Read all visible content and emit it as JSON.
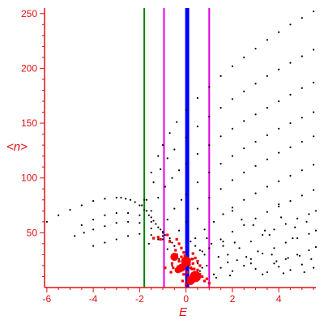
{
  "chart_data": {
    "type": "scatter",
    "title": "",
    "xlabel": "E",
    "ylabel": "<n>",
    "xlim": [
      -6.1,
      5.6
    ],
    "ylim": [
      0,
      255
    ],
    "x_ticks": [
      -6,
      -4,
      -2,
      0,
      2,
      4
    ],
    "y_ticks": [
      50,
      100,
      150,
      200,
      250
    ],
    "grid": false,
    "legend": "none",
    "colors": {
      "axis": "#e01010",
      "tick_text": "#e01010",
      "black_points": "#000000",
      "red_points": "#ff0000",
      "green_line": "#008000",
      "magenta_lines": "#e000e0",
      "blue_line": "#0000ff"
    },
    "vertical_lines": [
      {
        "x": -1.8,
        "color": "#008000",
        "width": 2
      },
      {
        "x": -0.95,
        "color": "#e000e0",
        "width": 2
      },
      {
        "x": 0.05,
        "color": "#0000ff",
        "width": 5
      },
      {
        "x": 1.0,
        "color": "#e000e0",
        "width": 2
      }
    ],
    "series": [
      {
        "color": "#000000",
        "x": [
          -6.0,
          -5.5,
          -5.0,
          -4.5,
          -4.0,
          -3.5,
          -3.0,
          -2.8,
          -2.6,
          -2.4,
          -2.2,
          -2.0,
          -1.8,
          -1.6,
          -1.4,
          -1.2,
          -1.0
        ],
        "y": [
          60,
          66,
          71,
          75,
          79,
          81,
          82,
          82,
          81,
          80,
          78,
          75,
          71,
          66,
          61,
          55,
          50
        ]
      },
      {
        "color": "#000000",
        "x": [
          -4.5,
          -4.0,
          -3.5,
          -3.0,
          -2.5,
          -2.0,
          -1.5,
          -1.0,
          -0.7
        ],
        "y": [
          57,
          62,
          66,
          68,
          68,
          66,
          60,
          51,
          45
        ]
      },
      {
        "color": "#000000",
        "x": [
          -4.8,
          -4.4,
          -4.0,
          -3.5,
          -3.0,
          -2.5,
          -2.0,
          -1.5,
          -1.0,
          -0.6
        ],
        "y": [
          47,
          50,
          53,
          56,
          59,
          60,
          59,
          54,
          47,
          41
        ]
      },
      {
        "color": "#000000",
        "x": [
          -4.0,
          -3.5,
          -3.0,
          -2.5,
          -2.0,
          -1.5,
          -1.0,
          -0.5
        ],
        "y": [
          38,
          41,
          44,
          47,
          49,
          48,
          44,
          38
        ]
      },
      {
        "color": "#000000",
        "x": [
          -1.9,
          -1.7,
          -1.5,
          -1.3,
          -1.1,
          -0.9,
          -0.7,
          -0.5
        ],
        "y": [
          75,
          70,
          64,
          58,
          53,
          48,
          43,
          38
        ]
      },
      {
        "color": "#000000",
        "x": [
          -1.8,
          -1.5,
          -1.2,
          -1.0,
          -0.7,
          -0.4,
          0.0,
          0.5,
          1.0,
          1.5,
          2.0,
          2.5,
          3.0,
          3.5,
          4.0,
          4.5,
          5.0,
          5.5
        ],
        "y": [
          80,
          105,
          120,
          130,
          141,
          151,
          162,
          173,
          183,
          193,
          202,
          210,
          218,
          226,
          233,
          240,
          246,
          252
        ]
      },
      {
        "color": "#000000",
        "x": [
          -1.7,
          -1.4,
          -1.1,
          -0.8,
          -0.5,
          0.0,
          0.5,
          1.0,
          1.5,
          2.0,
          2.5,
          3.0,
          3.5,
          4.0,
          4.5,
          5.0,
          5.5
        ],
        "y": [
          80,
          96,
          108,
          118,
          126,
          137,
          147,
          156,
          164,
          172,
          179,
          186,
          193,
          199,
          205,
          211,
          217
        ]
      },
      {
        "color": "#000000",
        "x": [
          -1.5,
          -1.2,
          -0.9,
          -0.6,
          -0.3,
          0.0,
          0.5,
          1.0,
          1.5,
          2.0,
          2.5,
          3.0,
          3.5,
          4.0,
          4.5,
          5.0,
          5.5
        ],
        "y": [
          70,
          82,
          92,
          100,
          107,
          113,
          122,
          130,
          138,
          145,
          152,
          158,
          164,
          170,
          176,
          182,
          187
        ]
      },
      {
        "color": "#000000",
        "x": [
          -0.8,
          -0.5,
          -0.2,
          0.0,
          0.5,
          1.0,
          1.5,
          2.0,
          2.5,
          3.0,
          3.5,
          4.0,
          4.5,
          5.0,
          5.5
        ],
        "y": [
          62,
          72,
          80,
          85,
          96,
          105,
          113,
          120,
          127,
          133,
          139,
          145,
          150,
          155,
          160
        ]
      },
      {
        "color": "#000000",
        "x": [
          -0.3,
          0.0,
          0.5,
          1.0,
          1.5,
          2.0,
          2.5,
          3.0,
          3.5,
          4.0,
          4.5,
          5.0,
          5.5
        ],
        "y": [
          52,
          60,
          72,
          82,
          90,
          98,
          105,
          111,
          117,
          123,
          128,
          133,
          138
        ]
      },
      {
        "color": "#000000",
        "x": [
          0.4,
          0.8,
          1.2,
          1.6,
          2.0,
          2.5,
          3.0,
          3.5,
          4.0,
          4.5,
          5.0,
          5.5
        ],
        "y": [
          45,
          53,
          60,
          67,
          73,
          80,
          86,
          92,
          97,
          102,
          107,
          112
        ]
      },
      {
        "color": "#000000",
        "x": [
          1.0,
          1.5,
          2.0,
          2.5,
          3.0,
          3.5,
          4.0,
          4.5,
          5.0,
          5.5
        ],
        "y": [
          36,
          44,
          51,
          57,
          63,
          69,
          74,
          79,
          84,
          89
        ]
      },
      {
        "color": "#000000",
        "x": [
          1.8,
          2.3,
          2.8,
          3.3,
          3.8,
          4.3,
          4.8,
          5.3,
          5.6
        ],
        "y": [
          30,
          36,
          42,
          48,
          53,
          58,
          63,
          67,
          70
        ]
      },
      {
        "color": "#000000",
        "x": [
          2.8,
          3.3,
          3.8,
          4.3,
          4.8,
          5.3,
          5.6
        ],
        "y": [
          26,
          31,
          36,
          41,
          45,
          49,
          52
        ]
      },
      {
        "color": "#000000",
        "x": [
          3.8,
          4.3,
          4.8,
          5.3,
          5.6
        ],
        "y": [
          22,
          26,
          30,
          34,
          37
        ]
      },
      {
        "color": "#000000",
        "x": [
          1.5,
          2.0,
          2.5,
          3.0,
          3.5,
          4.0,
          4.5,
          5.0,
          5.5,
          2.2,
          2.8,
          3.3,
          3.9,
          4.4,
          5.1,
          1.8,
          2.6,
          3.1,
          3.7,
          4.2,
          4.9,
          5.4,
          2.1,
          3.4,
          4.6,
          1.6,
          2.4,
          2.9,
          3.6,
          4.1,
          4.7,
          5.2,
          0.9,
          1.2,
          1.4,
          0.7,
          1.1,
          0.6,
          1.3,
          1.9
        ],
        "y": [
          18,
          15,
          20,
          17,
          14,
          19,
          16,
          21,
          18,
          25,
          22,
          12,
          24,
          27,
          14,
          23,
          28,
          33,
          30,
          13,
          29,
          26,
          41,
          52,
          45,
          38,
          62,
          57,
          48,
          64,
          55,
          60,
          20,
          12,
          28,
          33,
          40,
          15,
          9,
          11
        ]
      },
      {
        "color": "#000000",
        "x": [
          0.2,
          0.4,
          0.6,
          0.8,
          0.3,
          0.5,
          0.7,
          -0.3,
          -0.5,
          -0.6,
          0.9,
          1.6,
          2.0,
          4.0,
          -1.2,
          -1.6,
          -0.8
        ],
        "y": [
          42,
          38,
          34,
          30,
          26,
          22,
          18,
          26,
          31,
          20,
          45,
          42,
          70,
          76,
          44,
          40,
          35
        ]
      }
    ],
    "red_points": {
      "color": "#ff0000",
      "x": [
        -0.5,
        -0.6,
        -0.4,
        -0.3,
        -0.2,
        -0.1,
        0.0,
        0.1,
        0.2,
        0.3,
        0.4,
        0.5,
        0.6,
        -0.45,
        -0.35,
        -0.25,
        -0.15,
        -0.05,
        0.05,
        0.15,
        0.25,
        0.35,
        0.45,
        0.55,
        -0.55,
        -0.3,
        -0.2,
        -0.1,
        0.1,
        0.2,
        0.3,
        0.4,
        -0.4,
        0.5,
        -0.7,
        -0.8,
        -1.1,
        -1.2,
        -0.9,
        0.7,
        0.8,
        0.9,
        1.0,
        -1.4,
        -0.65,
        0.6,
        0.0,
        -0.15,
        0.25,
        0.35
      ],
      "y": [
        26,
        22,
        30,
        24,
        28,
        32,
        20,
        25,
        18,
        22,
        27,
        16,
        12,
        34,
        19,
        15,
        23,
        29,
        14,
        21,
        17,
        13,
        10,
        8,
        18,
        40,
        36,
        12,
        9,
        5,
        31,
        7,
        44,
        24,
        42,
        48,
        44,
        46,
        18,
        10,
        6,
        8,
        4,
        45,
        14,
        20,
        3,
        6,
        26,
        17
      ]
    },
    "red_blobs": {
      "x": [
        -0.2,
        0.0,
        0.4,
        -0.5,
        0.2,
        -0.35
      ],
      "y": [
        18,
        24,
        10,
        28,
        6,
        16
      ],
      "r": [
        5,
        6,
        7,
        5,
        5,
        4
      ]
    }
  }
}
